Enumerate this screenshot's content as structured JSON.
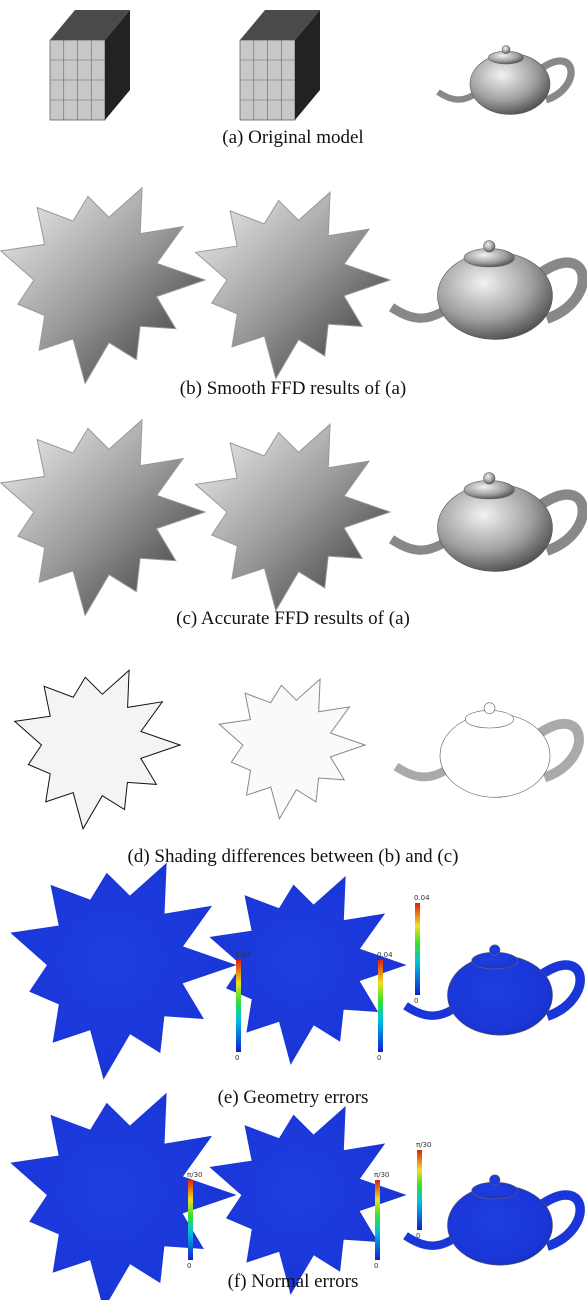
{
  "panels": [
    {
      "caption": "(a) Original model"
    },
    {
      "caption": "(b) Smooth FFD results of (a)"
    },
    {
      "caption": "(c) Accurate FFD results of (a)"
    },
    {
      "caption": "(d) Shading differences between (b) and (c)"
    },
    {
      "caption": "(e) Geometry errors",
      "colorbars": [
        {
          "max": "0.04",
          "min": "0"
        },
        {
          "max": "0.04",
          "min": "0"
        },
        {
          "max": "0.04",
          "min": "0"
        }
      ]
    },
    {
      "caption": "(f) Normal errors",
      "colorbars": [
        {
          "max": "π/30",
          "min": "0"
        },
        {
          "max": "π/30",
          "min": "0"
        },
        {
          "max": "π/30",
          "min": "0"
        }
      ]
    }
  ]
}
